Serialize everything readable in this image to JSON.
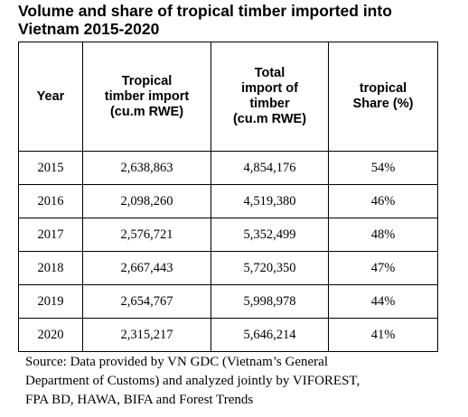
{
  "title_line1": "Volume and share of tropical timber imported into",
  "title_line2": "Vietnam 2015-2020",
  "table": {
    "headers": [
      [
        "Year"
      ],
      [
        "Tropical",
        "timber import",
        "(cu.m RWE)"
      ],
      [
        "Total",
        "import of",
        "timber",
        "(cu.m RWE)"
      ],
      [
        "tropical",
        "Share (%)"
      ]
    ],
    "rows": [
      [
        "2015",
        "2,638,863",
        "4,854,176",
        "54%"
      ],
      [
        "2016",
        "2,098,260",
        "4,519,380",
        "46%"
      ],
      [
        "2017",
        "2,576,721",
        "5,352,499",
        "48%"
      ],
      [
        "2018",
        "2,667,443",
        "5,720,350",
        "47%"
      ],
      [
        "2019",
        "2,654,767",
        "5,998,978",
        "44%"
      ],
      [
        "2020",
        "2,315,217",
        "5,646,214",
        "41%"
      ]
    ]
  },
  "source_lines": [
    "Source: Data provided by VN GDC (Vietnam’s General",
    "Department of Customs) and analyzed jointly by VIFOREST,",
    "FPA BD, HAWA, BIFA and Forest Trends"
  ]
}
